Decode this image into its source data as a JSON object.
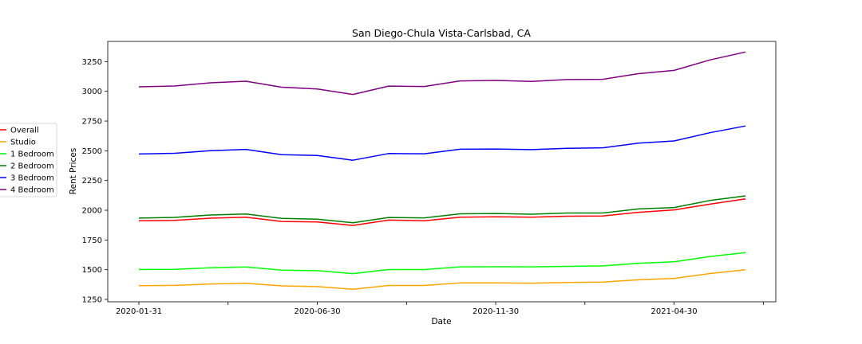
{
  "chart_data": {
    "type": "line",
    "title": "San Diego-Chula Vista-Carlsbad, CA",
    "xlabel": "Date",
    "ylabel": "Rent Prices",
    "x": [
      "2020-01-31",
      "2020-02-29",
      "2020-03-31",
      "2020-04-30",
      "2020-05-31",
      "2020-06-30",
      "2020-07-31",
      "2020-08-31",
      "2020-09-30",
      "2020-10-31",
      "2020-11-30",
      "2020-12-31",
      "2021-01-31",
      "2021-02-28",
      "2021-03-31",
      "2021-04-30",
      "2021-05-31",
      "2021-06-30"
    ],
    "x_tick_labels": [
      "2020-01-31",
      "",
      "2020-06-30",
      "",
      "2020-11-30",
      "",
      "2021-04-30",
      ""
    ],
    "y_ticks": [
      "1250",
      "1500",
      "1750",
      "2000",
      "2250",
      "2500",
      "2750",
      "3000",
      "3250"
    ],
    "ylim": [
      1230,
      3420
    ],
    "grid": false,
    "legend_position": "left, outside plot",
    "series": [
      {
        "name": "Overall",
        "color": "#ff0000",
        "values": [
          1912,
          1915,
          1933,
          1942,
          1906,
          1901,
          1872,
          1917,
          1912,
          1941,
          1945,
          1942,
          1950,
          1952,
          1983,
          2003,
          2051,
          2096
        ]
      },
      {
        "name": "Studio",
        "color": "#ffa500",
        "values": [
          1365,
          1368,
          1380,
          1386,
          1364,
          1358,
          1336,
          1367,
          1367,
          1389,
          1389,
          1387,
          1393,
          1396,
          1415,
          1427,
          1468,
          1500
        ]
      },
      {
        "name": "1 Bedroom",
        "color": "#00ff00",
        "values": [
          1502,
          1503,
          1516,
          1523,
          1496,
          1492,
          1467,
          1501,
          1501,
          1524,
          1525,
          1524,
          1528,
          1532,
          1554,
          1567,
          1611,
          1643
        ]
      },
      {
        "name": "2 Bedroom",
        "color": "#008000",
        "values": [
          1934,
          1940,
          1960,
          1969,
          1932,
          1925,
          1895,
          1939,
          1936,
          1970,
          1973,
          1967,
          1977,
          1977,
          2011,
          2023,
          2082,
          2121
        ]
      },
      {
        "name": "3 Bedroom",
        "color": "#0000ff",
        "values": [
          2473,
          2479,
          2501,
          2512,
          2467,
          2461,
          2421,
          2477,
          2475,
          2513,
          2515,
          2510,
          2521,
          2525,
          2565,
          2583,
          2652,
          2709
        ]
      },
      {
        "name": "4 Bedroom",
        "color": "#800080",
        "values": [
          3038,
          3045,
          3072,
          3085,
          3035,
          3020,
          2974,
          3044,
          3041,
          3088,
          3092,
          3084,
          3099,
          3101,
          3149,
          3176,
          3264,
          3331
        ]
      }
    ]
  }
}
